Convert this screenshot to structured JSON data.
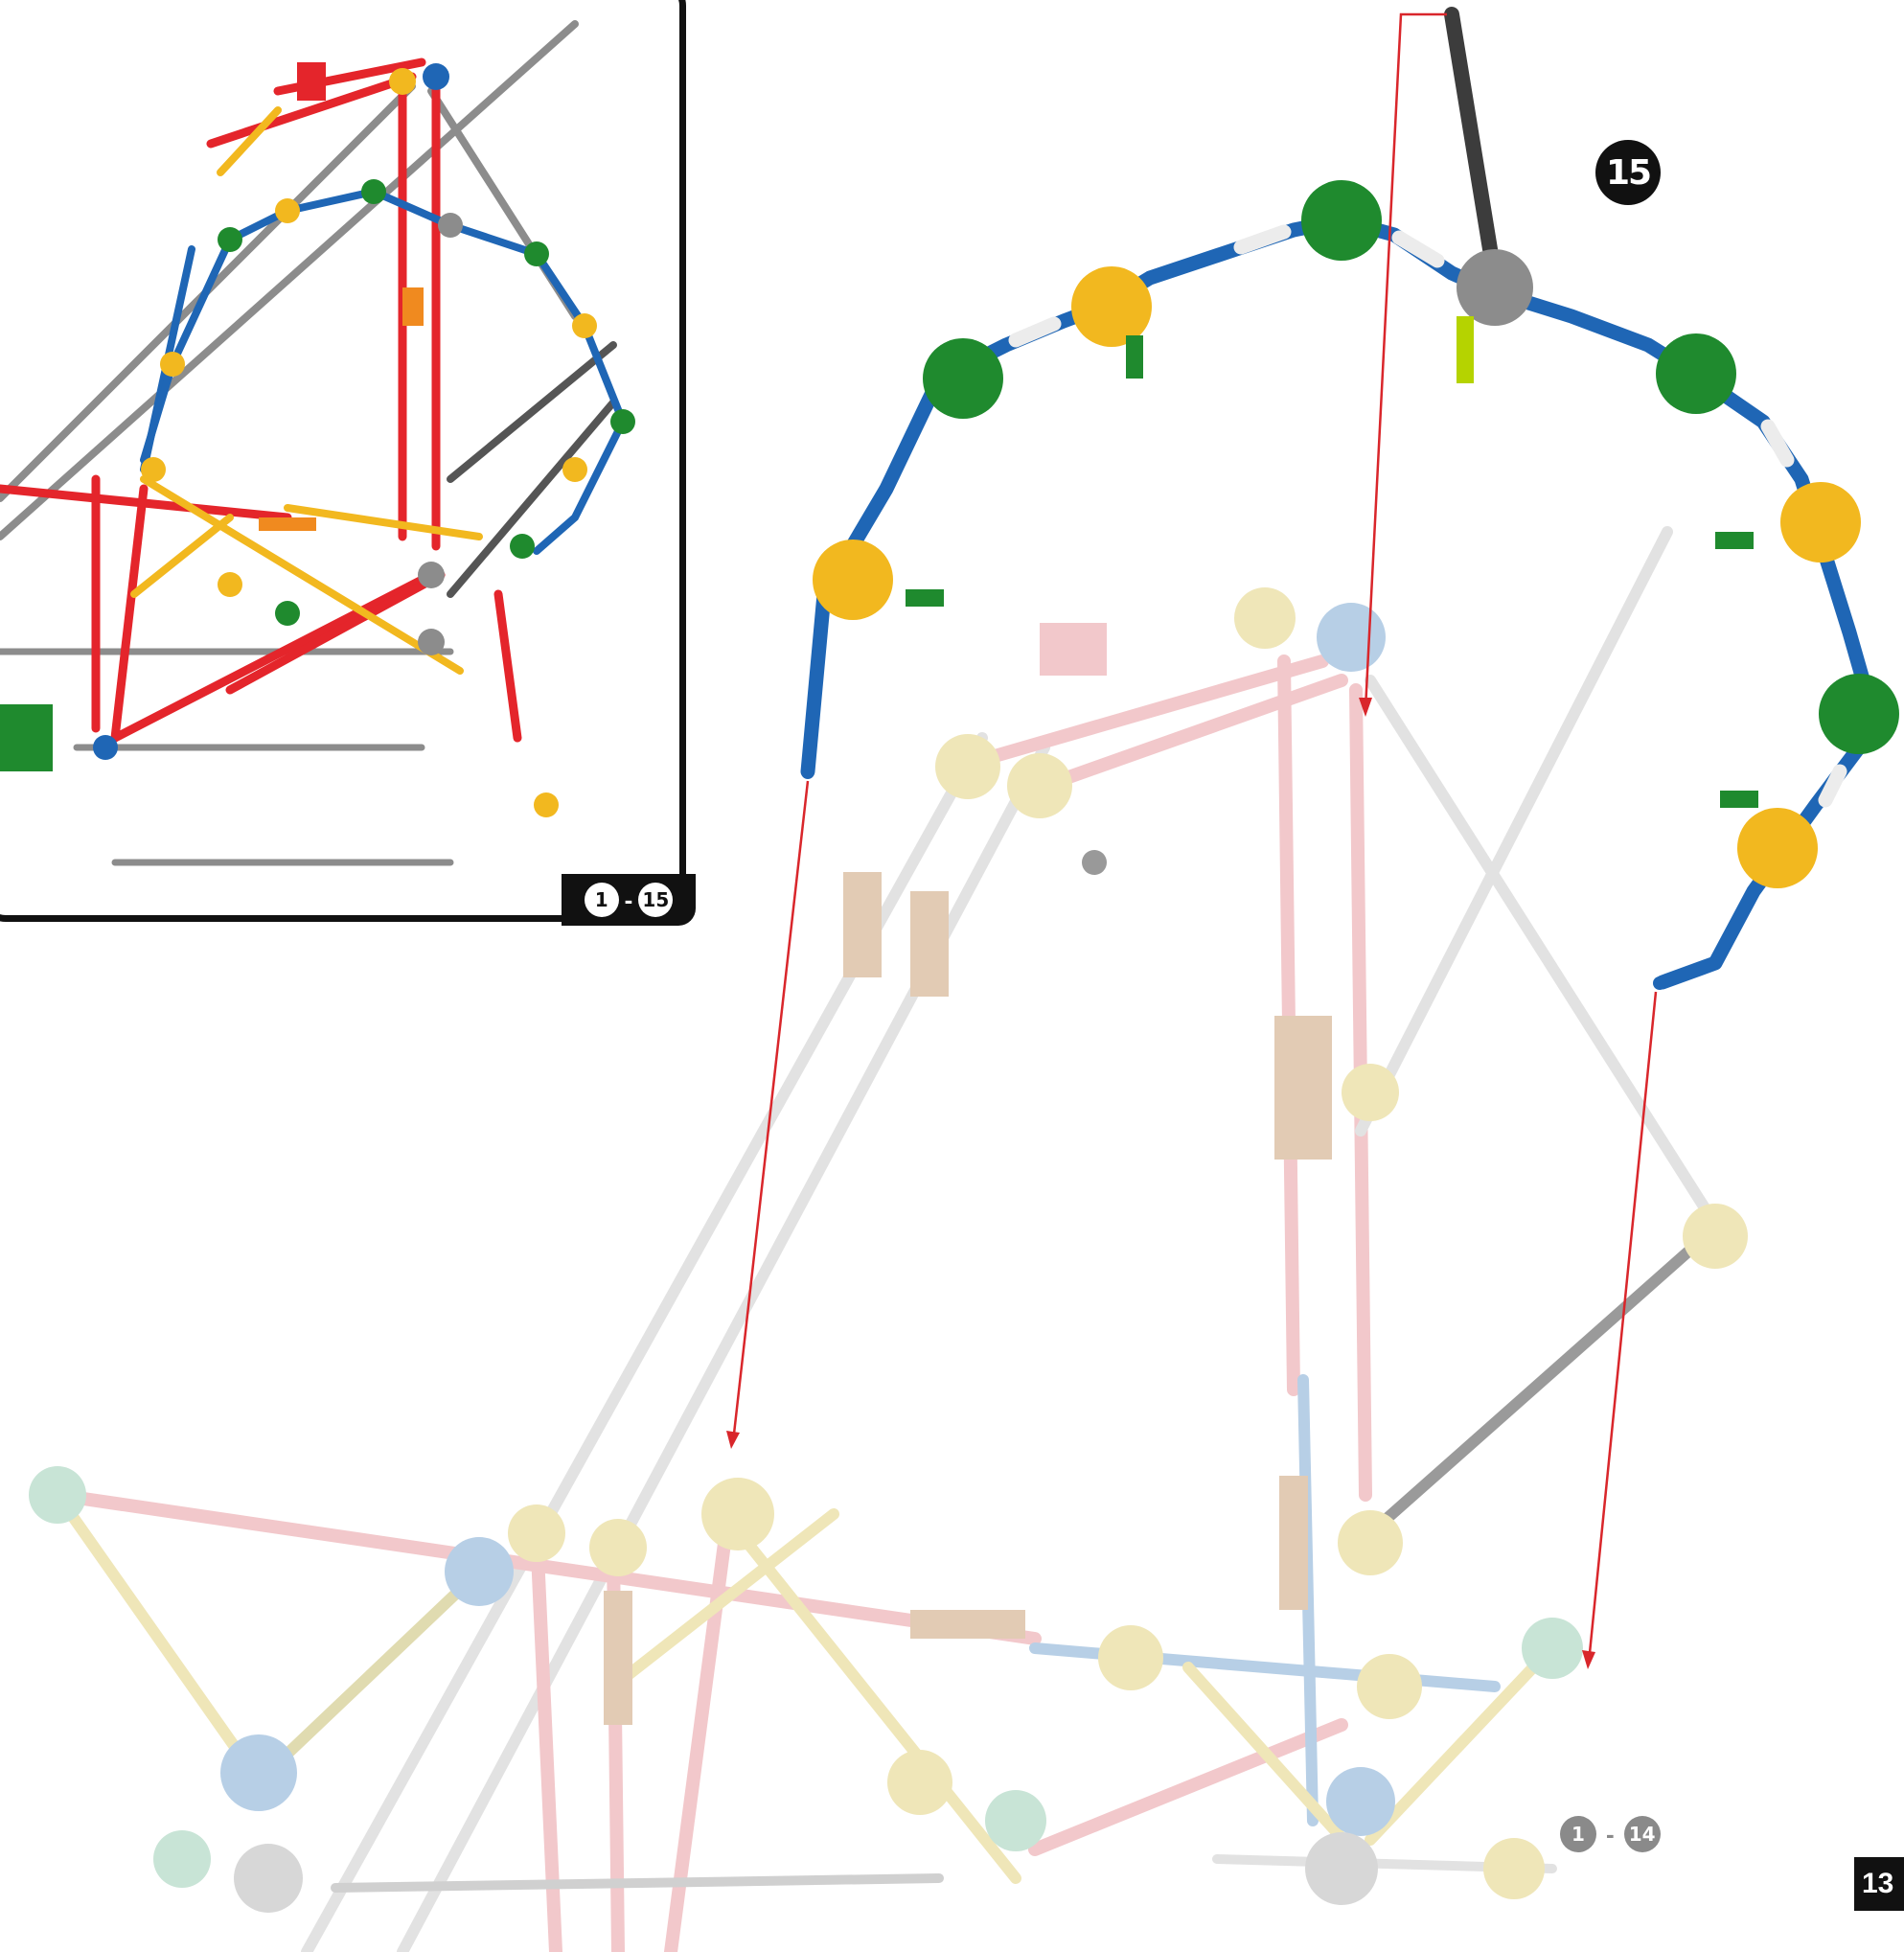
{
  "inset": {
    "range_start": "1",
    "range_sep": "-",
    "range_end": "15"
  },
  "step": {
    "number": "15"
  },
  "previous": {
    "range_start": "1",
    "range_sep": "-",
    "range_end": "14"
  },
  "page": {
    "number": "13"
  },
  "colors": {
    "rod_blue": "#1f66b5",
    "rod_red": "#e4252b",
    "rod_gray": "#8c8c8c",
    "rod_white": "#e8e8e8",
    "rod_dark": "#3c3c3c",
    "connector_green": "#1f8a2e",
    "connector_yellow": "#f2b81f",
    "connector_orange": "#f08a1f",
    "arrow": "#d9262b",
    "ghost_pink": "#f2c8cb",
    "ghost_cream": "#efe6b8",
    "ghost_mint": "#c8e4d6",
    "ghost_blue": "#b7cfe6"
  }
}
